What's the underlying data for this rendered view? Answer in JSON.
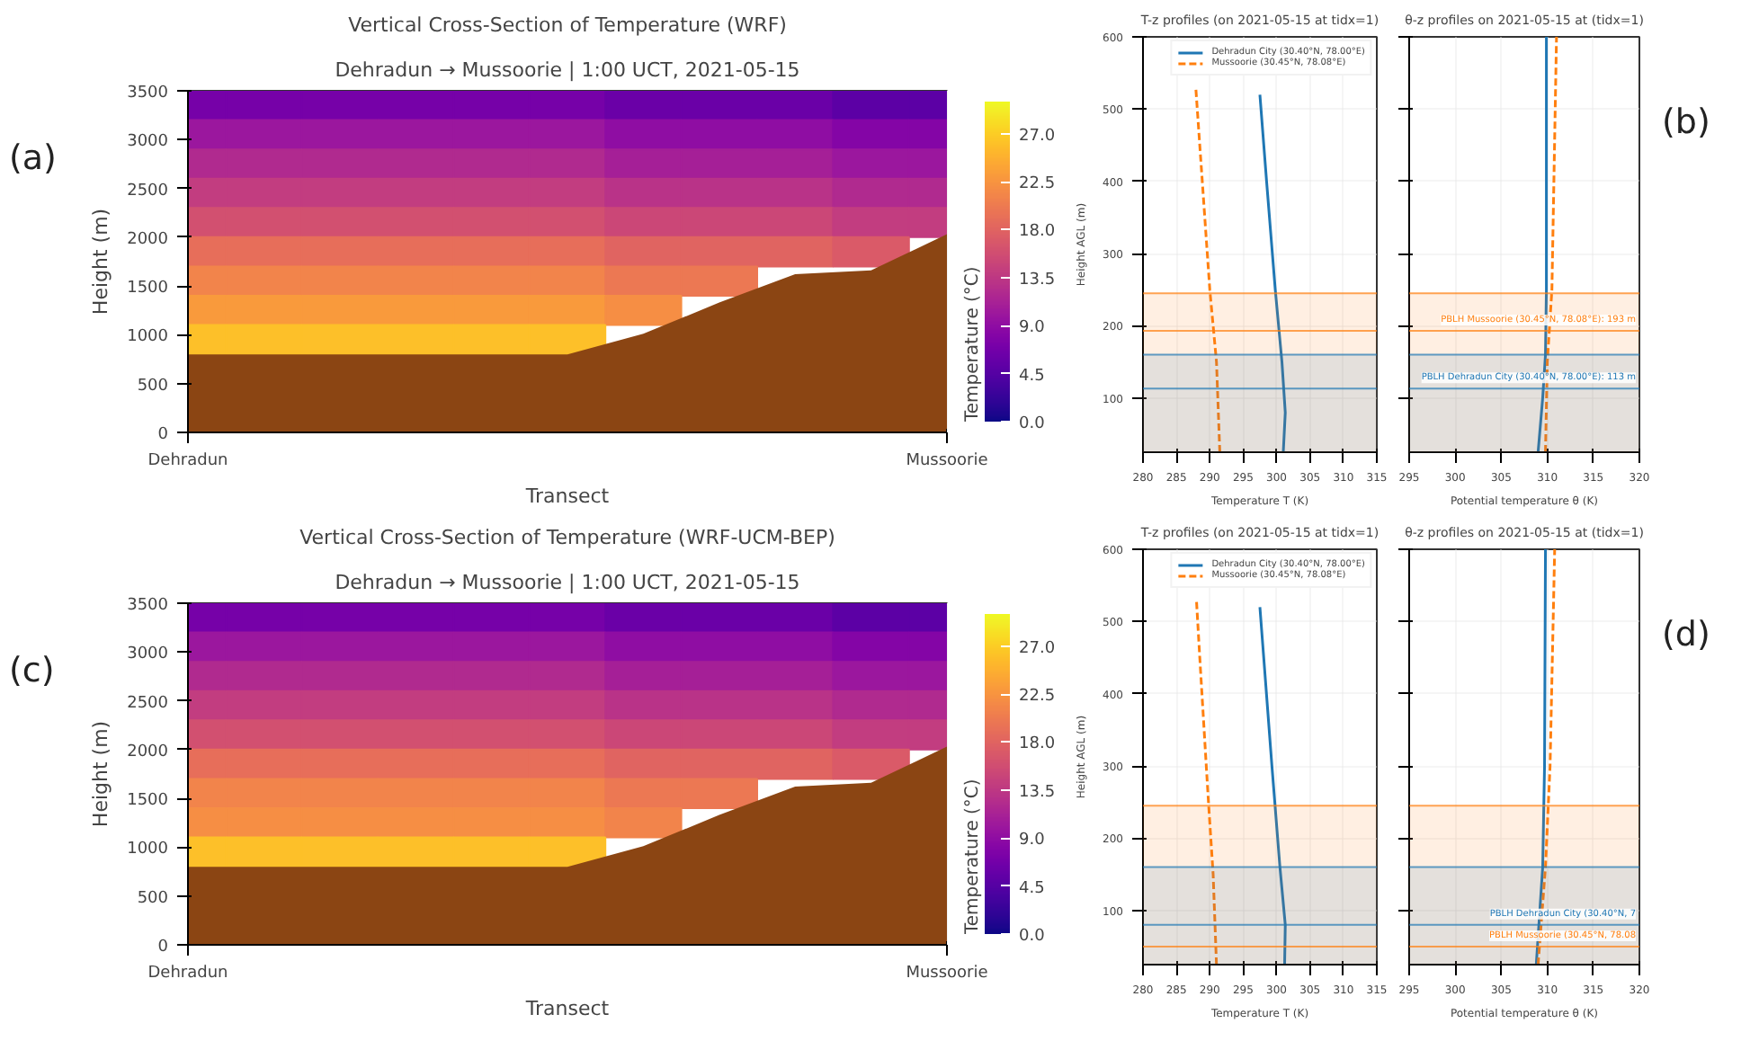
{
  "chart_data": [
    {
      "type": "heatmap",
      "title": "Vertical Cross-Section of Temperature (WRF)",
      "subtitle": "Dehradun → Mussoorie | 1:00 UCT, 2021-05-15",
      "xlabel": "Transect",
      "ylabel": "Height (m)",
      "clabel": "Temperature (°C)",
      "annotations": [
        "(a)"
      ],
      "categories": [
        "Dehradun",
        null,
        null,
        null,
        null,
        null,
        null,
        null,
        null,
        null,
        "Mussoorie"
      ],
      "y": [
        3350,
        3050,
        2750,
        2450,
        2150,
        1850,
        1550,
        1250,
        950
      ],
      "cells": [
        [
          7,
          7,
          7,
          7,
          7,
          7,
          6,
          6,
          6,
          5,
          5
        ],
        [
          10,
          10,
          10,
          10,
          10,
          10,
          9,
          9,
          9,
          8,
          8
        ],
        [
          12,
          12,
          12,
          12,
          12,
          12,
          11,
          11,
          11,
          10,
          10
        ],
        [
          14,
          14,
          14,
          14,
          14,
          14,
          13,
          13,
          13,
          12,
          12
        ],
        [
          16,
          16,
          16,
          16,
          16,
          16,
          15,
          15,
          15,
          14,
          14
        ],
        [
          19,
          19,
          19,
          19,
          19,
          19,
          18,
          18,
          18,
          17,
          null
        ],
        [
          21,
          21,
          21,
          21,
          21,
          21,
          20,
          20,
          null,
          null,
          null
        ],
        [
          23,
          23,
          23,
          23,
          23,
          23,
          22,
          null,
          null,
          null,
          null
        ],
        [
          26,
          26,
          26,
          26,
          26,
          26,
          null,
          null,
          null,
          null,
          null
        ]
      ],
      "clim": [
        0,
        30
      ],
      "cticks": [
        {
          "value": 0,
          "label": "0.0"
        },
        {
          "value": 4.5,
          "label": "4.5"
        },
        {
          "value": 9,
          "label": "9.0"
        },
        {
          "value": 13.5,
          "label": "13.5"
        },
        {
          "value": 18,
          "label": "18.0"
        },
        {
          "value": 22.5,
          "label": "22.5"
        },
        {
          "value": 27,
          "label": "27.0"
        }
      ],
      "series": [
        {
          "type": "area",
          "color": "#8b4513",
          "values": [
            800,
            800,
            800,
            800,
            800,
            800,
            1010,
            1330,
            1620,
            1660,
            2030
          ]
        }
      ],
      "ylim": [
        0,
        3500
      ],
      "yticks": [
        0,
        500,
        1000,
        1500,
        2000,
        2500,
        3000,
        3500
      ]
    },
    {
      "type": "line",
      "title": "T-z profiles (on 2021-05-15 at tidx=1)",
      "xlabel": "Temperature T (K)",
      "ylabel": "Height AGL (m)",
      "grid": true,
      "legend": "top right",
      "series": [
        {
          "name": "Dehradun City (30.40°N, 78.00°E)",
          "color": "#1f77b4",
          "line_style": "solid",
          "x": [
            301.0,
            301.3,
            300.8,
            299.8,
            298.5,
            297.5
          ],
          "values": [
            25,
            80,
            150,
            250,
            400,
            520
          ]
        },
        {
          "name": "Mussoorie (30.45°N, 78.08°E)",
          "color": "#ff7f0e",
          "line_style": "dashed",
          "x": [
            291.5,
            291.0,
            290.0,
            288.5,
            287.9
          ],
          "values": [
            25,
            150,
            250,
            450,
            530
          ]
        }
      ],
      "bands": [
        {
          "axis": "y",
          "from": 25,
          "to": 245,
          "color": "#ff7f0e"
        },
        {
          "axis": "y",
          "from": 25,
          "to": 160,
          "color": "#1f77b4"
        }
      ],
      "ref_lines": [
        {
          "axis": "y",
          "value": 245,
          "color": "#ff7f0e"
        },
        {
          "axis": "y",
          "value": 193,
          "color": "#ff7f0e"
        },
        {
          "axis": "y",
          "value": 160,
          "color": "#1f77b4"
        },
        {
          "axis": "y",
          "value": 113,
          "color": "#1f77b4"
        }
      ],
      "xlim": [
        280,
        315
      ],
      "xticks": [
        280,
        285,
        290,
        295,
        300,
        305,
        310,
        315
      ],
      "ylim": [
        25,
        600
      ],
      "yticks": [
        100,
        200,
        300,
        400,
        500,
        600
      ]
    },
    {
      "type": "line",
      "title": "θ-z profiles on 2021-05-15 at (tidx=1)",
      "xlabel": "Potential temperature θ (K)",
      "grid": true,
      "tick_labels": "x",
      "annotations": [
        "(b)"
      ],
      "series": [
        {
          "color": "#1f77b4",
          "line_style": "solid",
          "x": [
            309.0,
            309.5,
            309.8,
            309.9,
            309.9
          ],
          "values": [
            25,
            100,
            160,
            250,
            600
          ]
        },
        {
          "color": "#ff7f0e",
          "line_style": "dashed",
          "x": [
            309.8,
            310.0,
            310.5,
            311.0
          ],
          "values": [
            25,
            150,
            250,
            600
          ]
        }
      ],
      "bands": [
        {
          "axis": "y",
          "from": 25,
          "to": 245,
          "color": "#ff7f0e"
        },
        {
          "axis": "y",
          "from": 25,
          "to": 160,
          "color": "#1f77b4"
        }
      ],
      "ref_lines": [
        {
          "axis": "y",
          "value": 245,
          "color": "#ff7f0e"
        },
        {
          "axis": "y",
          "value": 193,
          "color": "#ff7f0e",
          "label": "PBLH Mussoorie (30.45°N, 78.08°E): 193 m"
        },
        {
          "axis": "y",
          "value": 160,
          "color": "#1f77b4"
        },
        {
          "axis": "y",
          "value": 113,
          "color": "#1f77b4",
          "label": "PBLH Dehradun City (30.40°N, 78.00°E): 113 m"
        }
      ],
      "xlim": [
        295,
        320
      ],
      "xticks": [
        295,
        300,
        305,
        310,
        315,
        320
      ],
      "ylim": [
        25,
        600
      ],
      "yticks": [
        100,
        200,
        300,
        400,
        500,
        600
      ]
    },
    {
      "type": "heatmap",
      "title": "Vertical Cross-Section of Temperature (WRF-UCM-BEP)",
      "subtitle": "Dehradun → Mussoorie | 1:00 UCT, 2021-05-15",
      "xlabel": "Transect",
      "ylabel": "Height (m)",
      "clabel": "Temperature (°C)",
      "annotations": [
        "(c)"
      ],
      "categories": [
        "Dehradun",
        null,
        null,
        null,
        null,
        null,
        null,
        null,
        null,
        null,
        "Mussoorie"
      ],
      "y": [
        3350,
        3050,
        2750,
        2450,
        2150,
        1850,
        1550,
        1250,
        950
      ],
      "cells": [
        [
          7,
          7,
          7,
          7,
          7,
          7,
          6,
          6,
          6,
          5,
          5
        ],
        [
          10,
          10,
          10,
          10,
          10,
          10,
          9,
          9,
          9,
          8,
          8
        ],
        [
          12,
          12,
          12,
          12,
          12,
          12,
          11,
          11,
          11,
          10,
          10
        ],
        [
          14,
          14,
          14,
          14,
          14,
          14,
          13,
          13,
          13,
          12,
          12
        ],
        [
          16,
          16,
          16,
          16,
          16,
          16,
          15,
          15,
          15,
          14,
          14
        ],
        [
          19,
          19,
          19,
          19,
          19,
          19,
          18,
          18,
          18,
          17,
          null
        ],
        [
          21,
          21,
          21,
          21,
          21,
          21,
          20,
          20,
          null,
          null,
          null
        ],
        [
          22,
          22,
          22,
          22,
          22,
          22,
          21,
          null,
          null,
          null,
          null
        ],
        [
          26,
          26,
          26,
          26,
          26,
          26,
          null,
          null,
          null,
          null,
          null
        ]
      ],
      "clim": [
        0,
        30
      ],
      "cticks": [
        {
          "value": 0,
          "label": "0.0"
        },
        {
          "value": 4.5,
          "label": "4.5"
        },
        {
          "value": 9,
          "label": "9.0"
        },
        {
          "value": 13.5,
          "label": "13.5"
        },
        {
          "value": 18,
          "label": "18.0"
        },
        {
          "value": 22.5,
          "label": "22.5"
        },
        {
          "value": 27,
          "label": "27.0"
        }
      ],
      "series": [
        {
          "type": "area",
          "color": "#8b4513",
          "values": [
            800,
            800,
            800,
            800,
            800,
            800,
            1010,
            1330,
            1620,
            1660,
            2030
          ]
        }
      ],
      "ylim": [
        0,
        3500
      ],
      "yticks": [
        0,
        500,
        1000,
        1500,
        2000,
        2500,
        3000,
        3500
      ]
    },
    {
      "type": "line",
      "title": "T-z profiles (on 2021-05-15 at tidx=1)",
      "xlabel": "Temperature T (K)",
      "ylabel": "Height AGL (m)",
      "grid": true,
      "legend": "top right",
      "series": [
        {
          "name": "Dehradun City (30.40°N, 78.00°E)",
          "color": "#1f77b4",
          "line_style": "solid",
          "x": [
            301.2,
            301.3,
            300.5,
            299.3,
            297.5
          ],
          "values": [
            25,
            80,
            160,
            300,
            520
          ]
        },
        {
          "name": "Mussoorie (30.45°N, 78.08°E)",
          "color": "#ff7f0e",
          "line_style": "dashed",
          "x": [
            291.0,
            290.5,
            289.8,
            288.5,
            288.0
          ],
          "values": [
            25,
            150,
            250,
            450,
            530
          ]
        }
      ],
      "bands": [
        {
          "axis": "y",
          "from": 25,
          "to": 245,
          "color": "#ff7f0e"
        },
        {
          "axis": "y",
          "from": 25,
          "to": 160,
          "color": "#1f77b4"
        }
      ],
      "ref_lines": [
        {
          "axis": "y",
          "value": 245,
          "color": "#ff7f0e"
        },
        {
          "axis": "y",
          "value": 160,
          "color": "#1f77b4"
        },
        {
          "axis": "y",
          "value": 80,
          "color": "#1f77b4"
        },
        {
          "axis": "y",
          "value": 50,
          "color": "#ff7f0e"
        }
      ],
      "xlim": [
        280,
        315
      ],
      "xticks": [
        280,
        285,
        290,
        295,
        300,
        305,
        310,
        315
      ],
      "ylim": [
        25,
        600
      ],
      "yticks": [
        100,
        200,
        300,
        400,
        500,
        600
      ]
    },
    {
      "type": "line",
      "title": "θ-z profiles on 2021-05-15 at (tidx=1)",
      "xlabel": "Potential temperature θ (K)",
      "grid": true,
      "tick_labels": "x",
      "annotations": [
        "(d)"
      ],
      "series": [
        {
          "color": "#1f77b4",
          "line_style": "solid",
          "x": [
            308.8,
            309.5,
            309.7,
            309.8
          ],
          "values": [
            25,
            160,
            300,
            600
          ]
        },
        {
          "color": "#ff7f0e",
          "line_style": "dashed",
          "x": [
            309.0,
            309.8,
            310.3,
            310.8
          ],
          "values": [
            25,
            160,
            300,
            600
          ]
        }
      ],
      "bands": [
        {
          "axis": "y",
          "from": 25,
          "to": 245,
          "color": "#ff7f0e"
        },
        {
          "axis": "y",
          "from": 25,
          "to": 160,
          "color": "#1f77b4"
        }
      ],
      "ref_lines": [
        {
          "axis": "y",
          "value": 245,
          "color": "#ff7f0e"
        },
        {
          "axis": "y",
          "value": 160,
          "color": "#1f77b4"
        },
        {
          "axis": "y",
          "value": 80,
          "color": "#1f77b4",
          "label": "PBLH Dehradun City (30.40°N, 7"
        },
        {
          "axis": "y",
          "value": 50,
          "color": "#ff7f0e",
          "label": "PBLH Mussoorie (30.45°N, 78.08"
        }
      ],
      "xlim": [
        295,
        320
      ],
      "xticks": [
        295,
        300,
        305,
        310,
        315,
        320
      ],
      "ylim": [
        25,
        600
      ],
      "yticks": [
        100,
        200,
        300,
        400,
        500,
        600
      ]
    }
  ]
}
